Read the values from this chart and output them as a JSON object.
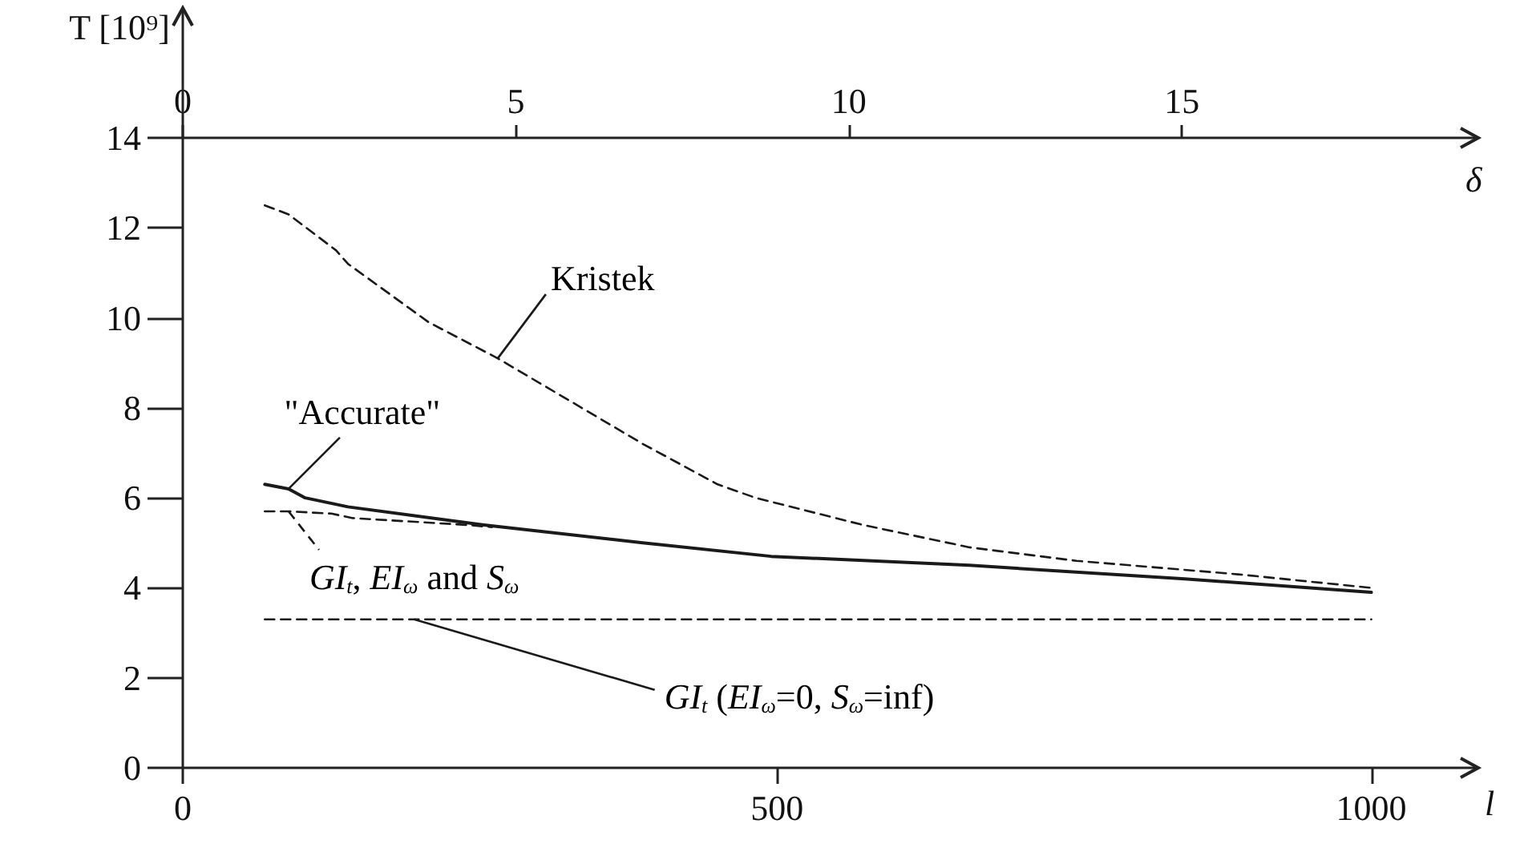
{
  "chart_data": {
    "type": "line",
    "ylabel": "T [10⁹]",
    "xlabel": "l",
    "x2label": "δ",
    "xlim": [
      0,
      1090
    ],
    "xticks": [
      0,
      500,
      1000
    ],
    "x2lim": [
      0,
      19.45
    ],
    "x2ticks": [
      0,
      5,
      10,
      15
    ],
    "ylim": [
      0,
      14
    ],
    "yticks": [
      0,
      2,
      4,
      6,
      8,
      10,
      12,
      14
    ],
    "marker": "none",
    "series": [
      {
        "name": "Kristek",
        "color": "#1a1a1a",
        "line_style": "dashed",
        "x": [
          69,
          89,
          119,
          129,
          139,
          207,
          265,
          387,
          450,
          482,
          572,
          662,
          752,
          888,
          1000
        ],
        "values": [
          12.5,
          12.3,
          11.7,
          11.5,
          11.2,
          9.9,
          9.1,
          7.2,
          6.3,
          6.0,
          5.4,
          4.9,
          4.6,
          4.3,
          4.0
        ]
      },
      {
        "name": "\"Accurate\"",
        "color": "#1a1a1a",
        "line_style": "solid",
        "x": [
          69,
          89,
          103,
          139,
          252,
          387,
          495,
          662,
          843,
          1000
        ],
        "values": [
          6.3,
          6.2,
          6.0,
          5.8,
          5.4,
          5.0,
          4.7,
          4.5,
          4.2,
          3.9
        ]
      },
      {
        "name": "GI$_{t}$, EI$_{ω}$ and S$_{ω}$",
        "color": "#1a1a1a",
        "line_style": "dashed",
        "x": [
          69,
          89,
          125,
          143,
          238,
          260
        ],
        "values": [
          5.7,
          5.7,
          5.65,
          5.55,
          5.4,
          5.35
        ]
      },
      {
        "name": "GI$_{t}$ (EI$_{ω}$=0, S$_{ω}$=inf)",
        "color": "#1a1a1a",
        "line_style": "dashed",
        "x": [
          69,
          1000
        ],
        "values": [
          3.3,
          3.3
        ]
      }
    ]
  }
}
